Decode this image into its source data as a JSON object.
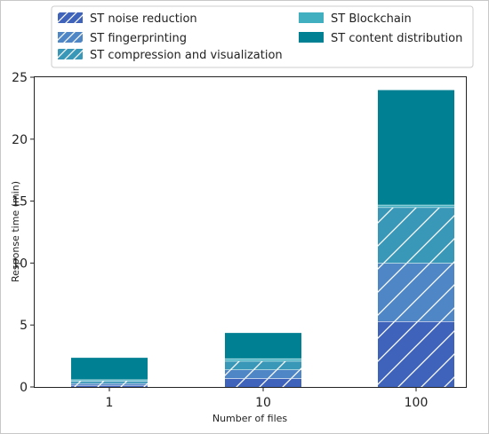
{
  "chart_data": {
    "type": "bar",
    "stacked": true,
    "categories": [
      "1",
      "10",
      "100"
    ],
    "xlabel": "Number of files",
    "ylabel": "Response time (min)",
    "ylim": [
      0,
      25
    ],
    "yticks": [
      0,
      5,
      10,
      15,
      20,
      25
    ],
    "grid": false,
    "legend_position": "top",
    "series": [
      {
        "name": "ST noise reduction",
        "values": [
          0.15,
          0.7,
          5.3
        ],
        "color": "#3f62bb",
        "hatch": true
      },
      {
        "name": "ST fingerprinting",
        "values": [
          0.15,
          0.7,
          4.7
        ],
        "color": "#4f86c6",
        "hatch": true
      },
      {
        "name": "ST compression and visualization",
        "values": [
          0.2,
          0.7,
          4.5
        ],
        "color": "#3997b8",
        "hatch": true
      },
      {
        "name": "ST Blockchain",
        "values": [
          0.1,
          0.2,
          0.2
        ],
        "color": "#42afc1",
        "hatch": false
      },
      {
        "name": "ST content distribution",
        "values": [
          1.8,
          2.1,
          9.3
        ],
        "color": "#008193",
        "hatch": false
      }
    ]
  }
}
